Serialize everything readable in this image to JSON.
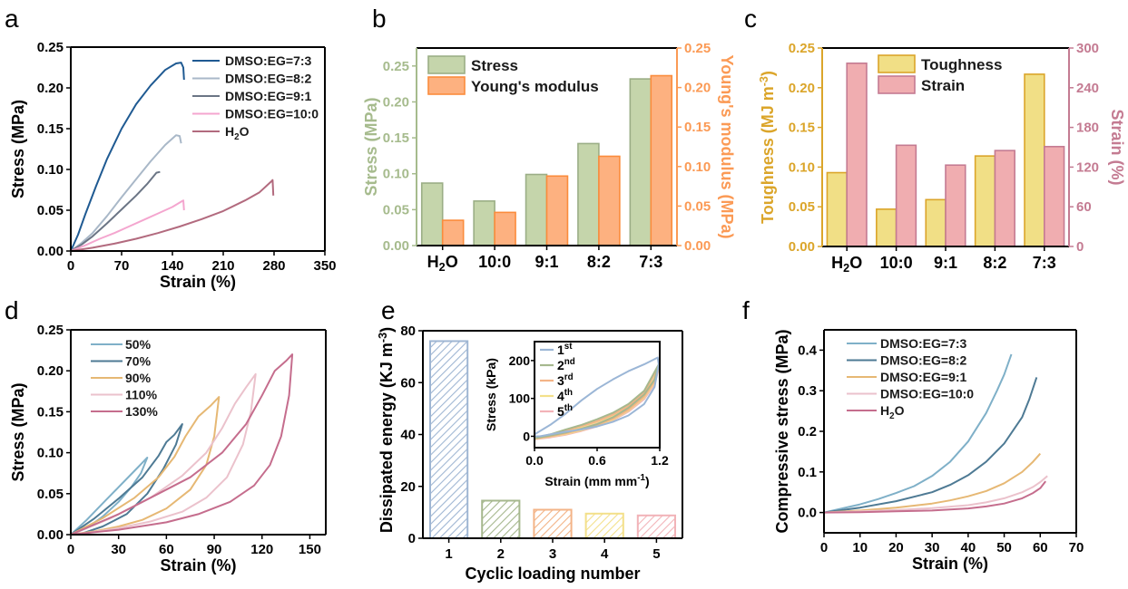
{
  "panel_letters": [
    "a",
    "b",
    "c",
    "d",
    "e",
    "f"
  ],
  "chart_data": [
    {
      "id": "a",
      "type": "line",
      "xlabel": "Strain (%)",
      "ylabel": "Stress (MPa)",
      "xlim": [
        0,
        350
      ],
      "ylim": [
        0,
        0.25
      ],
      "xticks": [
        0,
        70,
        140,
        210,
        280,
        350
      ],
      "yticks": [
        0.0,
        0.05,
        0.1,
        0.15,
        0.2,
        0.25
      ],
      "ytick_labels": [
        "0.00",
        "0.05",
        "0.10",
        "0.15",
        "0.20",
        "0.25"
      ],
      "legend_position": "top-right",
      "series": [
        {
          "name": "DMSO:EG=7:3",
          "color": "#1f5a92",
          "x": [
            0,
            10,
            20,
            35,
            50,
            70,
            90,
            110,
            130,
            145,
            152,
            155,
            156
          ],
          "y": [
            0,
            0.02,
            0.045,
            0.08,
            0.113,
            0.15,
            0.18,
            0.203,
            0.222,
            0.23,
            0.231,
            0.225,
            0.21
          ]
        },
        {
          "name": "DMSO:EG=8:2",
          "color": "#a9b8c8",
          "x": [
            0,
            15,
            30,
            50,
            70,
            90,
            110,
            130,
            145,
            150,
            152
          ],
          "y": [
            0,
            0.01,
            0.022,
            0.043,
            0.066,
            0.088,
            0.11,
            0.13,
            0.142,
            0.141,
            0.132
          ]
        },
        {
          "name": "DMSO:EG=9:1",
          "color": "#6b7585",
          "x": [
            0,
            15,
            30,
            50,
            70,
            90,
            105,
            118,
            123
          ],
          "y": [
            0,
            0.008,
            0.018,
            0.034,
            0.051,
            0.068,
            0.082,
            0.096,
            0.097
          ]
        },
        {
          "name": "DMSO:EG=10:0",
          "color": "#f4a6cf",
          "x": [
            0,
            20,
            40,
            60,
            80,
            100,
            120,
            140,
            153,
            155,
            156
          ],
          "y": [
            0,
            0.007,
            0.015,
            0.022,
            0.03,
            0.038,
            0.046,
            0.054,
            0.061,
            0.062,
            0.05
          ]
        },
        {
          "name": "H₂O",
          "color": "#b26a7e",
          "x": [
            0,
            30,
            60,
            90,
            120,
            150,
            180,
            210,
            240,
            260,
            277,
            278,
            279
          ],
          "y": [
            0,
            0.004,
            0.009,
            0.015,
            0.022,
            0.03,
            0.039,
            0.049,
            0.062,
            0.072,
            0.086,
            0.087,
            0.068
          ]
        }
      ]
    },
    {
      "id": "b",
      "type": "bar",
      "categories": [
        "H₂O",
        "10:0",
        "9:1",
        "8:2",
        "7:3"
      ],
      "ylabel": "Stress (MPa)",
      "ylabel_right": "Young's modulus (MPa)",
      "ylim": [
        0,
        0.275
      ],
      "ylim_right": [
        0,
        0.25
      ],
      "yticks": [
        0.0,
        0.05,
        0.1,
        0.15,
        0.2,
        0.25
      ],
      "ytick_labels": [
        "0.00",
        "0.05",
        "0.10",
        "0.15",
        "0.20",
        "0.25"
      ],
      "yticks_right": [
        0.0,
        0.05,
        0.1,
        0.15,
        0.2,
        0.25
      ],
      "ytick_labels_right": [
        "0.00",
        "0.05",
        "0.10",
        "0.15",
        "0.20",
        "0.25"
      ],
      "legend_position": "top-left",
      "left_axis_color": "#a6bb8d",
      "right_axis_color": "#fb9a55",
      "series": [
        {
          "name": "Stress",
          "axis": "left",
          "fill": "#c5d5ab",
          "stroke": "#9bae86",
          "values": [
            0.087,
            0.062,
            0.099,
            0.142,
            0.232
          ]
        },
        {
          "name": "Young's modulus",
          "axis": "right",
          "fill": "#fdb180",
          "stroke": "#fb8c3c",
          "values": [
            0.032,
            0.042,
            0.088,
            0.113,
            0.215
          ]
        }
      ]
    },
    {
      "id": "c",
      "type": "bar",
      "categories": [
        "H₂O",
        "10:0",
        "9:1",
        "8:2",
        "7:3"
      ],
      "ylabel": "Toughness (MJ m⁻³)",
      "ylabel_right": "Strain (%)",
      "ylim": [
        0,
        0.25
      ],
      "ylim_right": [
        0,
        300
      ],
      "yticks": [
        0.0,
        0.05,
        0.1,
        0.15,
        0.2,
        0.25
      ],
      "ytick_labels": [
        "0.00",
        "0.05",
        "0.10",
        "0.15",
        "0.20",
        "0.25"
      ],
      "yticks_right": [
        0,
        60,
        120,
        180,
        240,
        300
      ],
      "ytick_labels_right": [
        "0",
        "60",
        "120",
        "180",
        "240",
        "300"
      ],
      "legend_position": "top-center",
      "left_axis_color": "#dba52a",
      "right_axis_color": "#c47b92",
      "series": [
        {
          "name": "Toughness",
          "axis": "left",
          "fill": "#f1df86",
          "stroke": "#dba52a",
          "values": [
            0.093,
            0.047,
            0.059,
            0.114,
            0.217
          ]
        },
        {
          "name": "Strain",
          "axis": "right",
          "fill": "#f0adb0",
          "stroke": "#c47b92",
          "values": [
            277,
            153,
            123,
            145,
            151
          ]
        }
      ]
    },
    {
      "id": "d",
      "type": "line",
      "xlabel": "Strain (%)",
      "ylabel": "Stress (MPa)",
      "xlim": [
        0,
        160
      ],
      "ylim": [
        0,
        0.25
      ],
      "xticks": [
        0,
        30,
        60,
        90,
        120,
        150
      ],
      "yticks": [
        0.0,
        0.05,
        0.1,
        0.15,
        0.2,
        0.25
      ],
      "ytick_labels": [
        "0.00",
        "0.05",
        "0.10",
        "0.15",
        "0.20",
        "0.25"
      ],
      "legend_position": "top-left",
      "series": [
        {
          "name": "50%",
          "color": "#7fb0c8",
          "x": [
            0,
            10,
            20,
            30,
            40,
            48,
            44,
            38,
            30,
            20,
            10,
            0
          ],
          "y": [
            0,
            0.018,
            0.038,
            0.058,
            0.078,
            0.094,
            0.075,
            0.058,
            0.04,
            0.022,
            0.008,
            0
          ]
        },
        {
          "name": "70%",
          "color": "#4e7a94",
          "x": [
            0,
            15,
            30,
            45,
            55,
            60,
            65,
            70,
            66,
            58,
            48,
            35,
            20,
            8,
            0
          ],
          "y": [
            0,
            0.02,
            0.044,
            0.07,
            0.096,
            0.113,
            0.122,
            0.135,
            0.11,
            0.08,
            0.05,
            0.025,
            0.01,
            0.002,
            0
          ]
        },
        {
          "name": "90%",
          "color": "#e6b874",
          "x": [
            0,
            20,
            40,
            55,
            65,
            72,
            80,
            88,
            93,
            90,
            85,
            75,
            60,
            45,
            30,
            15,
            0
          ],
          "y": [
            0,
            0.02,
            0.045,
            0.07,
            0.095,
            0.12,
            0.144,
            0.158,
            0.168,
            0.12,
            0.085,
            0.055,
            0.032,
            0.018,
            0.01,
            0.004,
            0
          ]
        },
        {
          "name": "110%",
          "color": "#ebc2cc",
          "x": [
            0,
            25,
            50,
            70,
            85,
            95,
            103,
            110,
            116,
            113,
            108,
            98,
            85,
            70,
            50,
            30,
            10,
            0
          ],
          "y": [
            0,
            0.02,
            0.045,
            0.072,
            0.1,
            0.13,
            0.16,
            0.18,
            0.196,
            0.15,
            0.11,
            0.07,
            0.045,
            0.028,
            0.016,
            0.008,
            0.002,
            0
          ]
        },
        {
          "name": "130%",
          "color": "#c56d8d",
          "x": [
            0,
            30,
            55,
            75,
            95,
            110,
            120,
            128,
            135,
            139,
            137,
            132,
            125,
            115,
            100,
            80,
            60,
            30,
            0
          ],
          "y": [
            0,
            0.025,
            0.05,
            0.07,
            0.1,
            0.135,
            0.17,
            0.2,
            0.212,
            0.22,
            0.17,
            0.12,
            0.085,
            0.06,
            0.04,
            0.025,
            0.015,
            0.006,
            0
          ]
        }
      ]
    },
    {
      "id": "e",
      "type": "bar",
      "xlabel": "Cyclic loading number",
      "ylabel": "Dissipated energy (KJ m⁻³)",
      "categories": [
        "1",
        "2",
        "3",
        "4",
        "5"
      ],
      "values": [
        76,
        14.5,
        11,
        9.5,
        8.8
      ],
      "colors": [
        "#9fb6d3",
        "#a6b88e",
        "#f3b487",
        "#f3e08a",
        "#f2b3b8"
      ],
      "pattern": "diagonal-hatch",
      "ylim": [
        0,
        80
      ],
      "yticks": [
        0,
        20,
        40,
        60,
        80
      ],
      "ytick_labels": [
        "0",
        "20",
        "40",
        "60",
        "80"
      ],
      "inset": {
        "type": "line",
        "xlabel": "Strain (mm mm⁻¹)",
        "ylabel": "Stress (kPa)",
        "xlim": [
          0,
          1.2
        ],
        "ylim": [
          -30,
          250
        ],
        "xticks": [
          0.0,
          0.6,
          1.2
        ],
        "xtick_labels": [
          "0.0",
          "0.6",
          "1.2"
        ],
        "yticks": [
          0,
          100,
          200
        ],
        "ytick_labels": [
          "0",
          "100",
          "200"
        ],
        "legend_position": "top-left",
        "series": [
          {
            "name": "1st",
            "base": "1",
            "sup": "st",
            "color": "#9bb6d6",
            "x": [
              0,
              0.15,
              0.3,
              0.45,
              0.6,
              0.75,
              0.9,
              1.05,
              1.18,
              1.19,
              1.15,
              1.05,
              0.9,
              0.75,
              0.6,
              0.45,
              0.3,
              0.15,
              0.05,
              0
            ],
            "y": [
              5,
              30,
              60,
              95,
              125,
              150,
              172,
              190,
              208,
              190,
              130,
              85,
              55,
              38,
              26,
              18,
              12,
              5,
              0,
              0
            ]
          },
          {
            "name": "2nd",
            "base": "2",
            "sup": "nd",
            "color": "#a6b88e",
            "x": [
              0,
              0.15,
              0.3,
              0.45,
              0.6,
              0.75,
              0.9,
              1.05,
              1.19,
              1.15,
              1.05,
              0.9,
              0.75,
              0.6,
              0.45,
              0.3,
              0.15,
              0
            ],
            "y": [
              -5,
              5,
              18,
              30,
              45,
              62,
              85,
              120,
              190,
              150,
              110,
              75,
              50,
              32,
              20,
              10,
              2,
              -5
            ]
          },
          {
            "name": "3rd",
            "base": "3",
            "sup": "rd",
            "color": "#f3b487",
            "x": [
              0,
              0.15,
              0.3,
              0.45,
              0.6,
              0.75,
              0.9,
              1.05,
              1.19,
              1.15,
              1.05,
              0.9,
              0.75,
              0.6,
              0.45,
              0.3,
              0.15,
              0
            ],
            "y": [
              -6,
              3,
              15,
              27,
              40,
              57,
              80,
              115,
              185,
              145,
              105,
              70,
              46,
              30,
              18,
              8,
              0,
              -6
            ]
          },
          {
            "name": "4th",
            "base": "4",
            "sup": "th",
            "color": "#f3e08a",
            "x": [
              0,
              0.15,
              0.3,
              0.45,
              0.6,
              0.75,
              0.9,
              1.05,
              1.19,
              1.15,
              1.05,
              0.9,
              0.75,
              0.6,
              0.45,
              0.3,
              0.15,
              0
            ],
            "y": [
              -7,
              2,
              13,
              25,
              38,
              55,
              77,
              112,
              182,
              142,
              102,
              68,
              44,
              28,
              16,
              6,
              -1,
              -7
            ]
          },
          {
            "name": "5th",
            "base": "5",
            "sup": "th",
            "color": "#f2b3b8",
            "x": [
              0,
              0.15,
              0.3,
              0.45,
              0.6,
              0.75,
              0.9,
              1.05,
              1.19,
              1.15,
              1.05,
              0.9,
              0.75,
              0.6,
              0.45,
              0.3,
              0.15,
              0
            ],
            "y": [
              -8,
              0,
              10,
              22,
              35,
              52,
              74,
              108,
              178,
              138,
              98,
              65,
              42,
              26,
              14,
              4,
              -3,
              -8
            ]
          }
        ]
      }
    },
    {
      "id": "f",
      "type": "line",
      "xlabel": "Strain (%)",
      "ylabel": "Compressive stress (MPa)",
      "xlim": [
        0,
        70
      ],
      "ylim": [
        -0.05,
        0.45
      ],
      "xticks": [
        0,
        10,
        20,
        30,
        40,
        50,
        60,
        70
      ],
      "yticks": [
        0.0,
        0.1,
        0.2,
        0.3,
        0.4
      ],
      "ytick_labels": [
        "0.0",
        "0.1",
        "0.2",
        "0.3",
        "0.4"
      ],
      "legend_position": "top-left",
      "series": [
        {
          "name": "DMSO:EG=7:3",
          "color": "#7fb0c8",
          "x": [
            0,
            5,
            10,
            15,
            20,
            25,
            30,
            35,
            40,
            45,
            48,
            50,
            52
          ],
          "y": [
            0,
            0.01,
            0.02,
            0.033,
            0.048,
            0.065,
            0.09,
            0.125,
            0.175,
            0.245,
            0.3,
            0.34,
            0.39
          ]
        },
        {
          "name": "DMSO:EG=8:2",
          "color": "#4e7a94",
          "x": [
            0,
            10,
            20,
            30,
            35,
            40,
            45,
            50,
            55,
            57,
            59
          ],
          "y": [
            0,
            0.012,
            0.028,
            0.05,
            0.068,
            0.092,
            0.125,
            0.17,
            0.235,
            0.28,
            0.333
          ]
        },
        {
          "name": "DMSO:EG=9:1",
          "color": "#e6b874",
          "x": [
            0,
            10,
            20,
            30,
            35,
            40,
            45,
            50,
            55,
            58,
            60
          ],
          "y": [
            0,
            0.005,
            0.012,
            0.022,
            0.03,
            0.04,
            0.053,
            0.072,
            0.1,
            0.125,
            0.145
          ]
        },
        {
          "name": "DMSO:EG=10:0",
          "color": "#ebc2cc",
          "x": [
            0,
            10,
            20,
            30,
            40,
            45,
            50,
            55,
            58,
            60,
            62
          ],
          "y": [
            0,
            0.003,
            0.006,
            0.011,
            0.018,
            0.025,
            0.035,
            0.05,
            0.063,
            0.075,
            0.09
          ]
        },
        {
          "name": "H₂O",
          "color": "#c56d8d",
          "x": [
            0,
            10,
            20,
            30,
            40,
            45,
            50,
            55,
            58,
            60,
            61.5
          ],
          "y": [
            0,
            0.001,
            0.003,
            0.005,
            0.01,
            0.015,
            0.022,
            0.035,
            0.048,
            0.06,
            0.077
          ]
        }
      ]
    }
  ]
}
